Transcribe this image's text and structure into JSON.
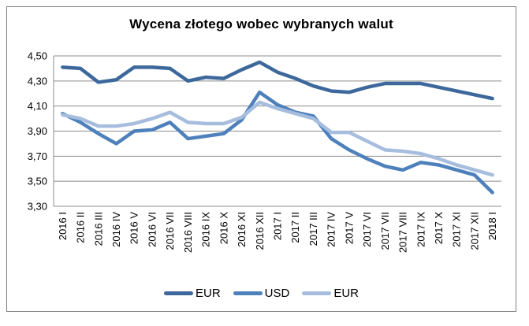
{
  "chart_data": {
    "type": "line",
    "title": "Wycena złotego wobec wybranych walut",
    "categories": [
      "2016 I",
      "2016 II",
      "2016 III",
      "2016 IV",
      "2016 V",
      "2016 VI",
      "2016 VII",
      "2016 VIII",
      "2016 IX",
      "2016 X",
      "2016 XI",
      "2016 XII",
      "2017 I",
      "2017 II",
      "2017 III",
      "2017 IV",
      "2017 V",
      "2017 VI",
      "2017 VII",
      "2017 VIII",
      "2017 IX",
      "2017 X",
      "2017 XI",
      "2017 XII",
      "2018 I"
    ],
    "series": [
      {
        "name": "EUR",
        "color": "#3D689C",
        "values": [
          4.41,
          4.4,
          4.29,
          4.31,
          4.41,
          4.41,
          4.4,
          4.3,
          4.33,
          4.32,
          4.39,
          4.45,
          4.37,
          4.32,
          4.26,
          4.22,
          4.21,
          4.25,
          4.28,
          4.28,
          4.28,
          4.25,
          4.22,
          4.19,
          4.16
        ]
      },
      {
        "name": "USD",
        "color": "#4E81BC",
        "values": [
          4.04,
          3.97,
          3.88,
          3.8,
          3.9,
          3.91,
          3.97,
          3.84,
          3.86,
          3.88,
          3.99,
          4.21,
          4.11,
          4.05,
          4.02,
          3.84,
          3.75,
          3.68,
          3.62,
          3.59,
          3.65,
          3.63,
          3.59,
          3.55,
          3.41
        ]
      },
      {
        "name": "EUR",
        "color": "#A6BDDE",
        "values": [
          4.03,
          4.0,
          3.94,
          3.94,
          3.96,
          4.0,
          4.05,
          3.97,
          3.96,
          3.96,
          4.01,
          4.13,
          4.08,
          4.04,
          4.0,
          3.89,
          3.89,
          3.82,
          3.75,
          3.74,
          3.72,
          3.68,
          3.63,
          3.59,
          3.55
        ]
      }
    ],
    "y_axis": {
      "min": 3.3,
      "max": 4.5,
      "step": 0.2,
      "tick_labels": [
        "4,50",
        "4,30",
        "4,10",
        "3,90",
        "3,70",
        "3,50",
        "3,30"
      ]
    },
    "x_label_rotation": -90,
    "grid": true,
    "legend_position": "bottom",
    "colors": {
      "frame_border": "#808080",
      "grid": "#8C8C8C",
      "text": "#000000"
    }
  }
}
